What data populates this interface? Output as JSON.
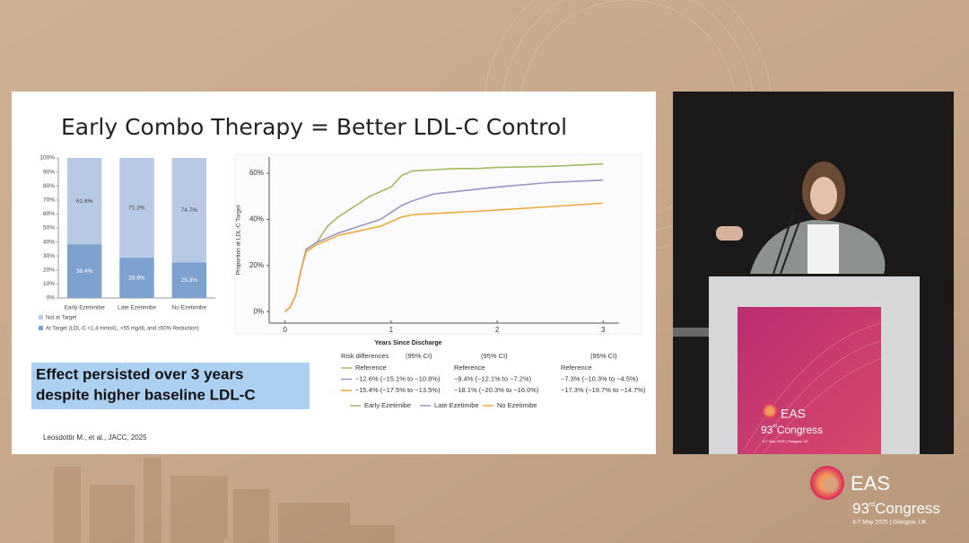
{
  "slide": {
    "title": "Early Combo Therapy = Better LDL-C Control",
    "callout": [
      "Effect persisted over 3 years",
      "despite higher baseline LDL-C"
    ],
    "citation": "Leosdottir M., et al., JACC, 2025"
  },
  "chart_data": [
    {
      "type": "stacked-bar",
      "categories": [
        "Early Ezetimibe",
        "Late Ezetimibe",
        "No Ezetimibe"
      ],
      "series": [
        {
          "name": "Not at Target",
          "color": "#b7c9e4",
          "values": [
            61.6,
            71.2,
            74.7
          ],
          "value_labels": [
            "61.6%",
            "71.2%",
            "74.7%"
          ]
        },
        {
          "name": "At Target (LDL-C <1.4 mmol/L, <55 mg/dL and ≥50% Reduction)",
          "color": "#7ea2d0",
          "values": [
            38.4,
            28.8,
            25.3
          ],
          "value_labels": [
            "38.4%",
            "28.8%",
            "25.3%"
          ]
        }
      ],
      "ylim": [
        0,
        100
      ],
      "yticks": [
        {
          "value": 0,
          "label": "0%"
        },
        {
          "value": 10,
          "label": "10%"
        },
        {
          "value": 20,
          "label": "20%"
        },
        {
          "value": 30,
          "label": "30%"
        },
        {
          "value": 40,
          "label": "40%"
        },
        {
          "value": 50,
          "label": "50%"
        },
        {
          "value": 60,
          "label": "60%"
        },
        {
          "value": 70,
          "label": "70%"
        },
        {
          "value": 80,
          "label": "80%"
        },
        {
          "value": 90,
          "label": "90%"
        },
        {
          "value": 100,
          "label": "100%"
        }
      ]
    },
    {
      "type": "line",
      "ylabel": "Proportion at LDL-C Target",
      "xlabel": "Years Since Discharge",
      "x": [
        0,
        0.05,
        0.1,
        0.15,
        0.2,
        0.3,
        0.4,
        0.5,
        0.6,
        0.7,
        0.8,
        0.9,
        1.0,
        1.1,
        1.2,
        1.4,
        1.6,
        1.8,
        2.0,
        2.5,
        3.0
      ],
      "series": [
        {
          "name": "Early Ezetimibe",
          "color": "#a3b961",
          "values": [
            0,
            2,
            7,
            18,
            27,
            30,
            37,
            41,
            44,
            47,
            50,
            52,
            54,
            59,
            61,
            61.5,
            62,
            62,
            62.5,
            63,
            64
          ]
        },
        {
          "name": "Late Ezetimibe",
          "color": "#9d93c4",
          "values": [
            0,
            2,
            7,
            18,
            27,
            30,
            32,
            34,
            35.5,
            37,
            38.5,
            40,
            43,
            46,
            48,
            51,
            52,
            53,
            54,
            56,
            57
          ]
        },
        {
          "name": "No Ezetimibe",
          "color": "#eea83c",
          "values": [
            0,
            2,
            7,
            18,
            26,
            29,
            31,
            33,
            34,
            35,
            36,
            37,
            39,
            41,
            42,
            42.5,
            43,
            43.5,
            44,
            45.5,
            47
          ]
        }
      ],
      "xlim": [
        -0.15,
        3.15
      ],
      "ylim": [
        -5,
        67
      ],
      "xticks": [
        0,
        1,
        2,
        3
      ],
      "yticks": [
        {
          "value": 0,
          "label": "0%"
        },
        {
          "value": 20,
          "label": "20%"
        },
        {
          "value": 40,
          "label": "40%"
        },
        {
          "value": 60,
          "label": "60%"
        }
      ]
    }
  ],
  "risk_table": {
    "header": [
      "Risk differences",
      "(95% CI)",
      "(95% CI)",
      "(95% CI)"
    ],
    "rows": [
      [
        "Reference",
        "Reference",
        "Reference"
      ],
      [
        "−12.6% (−15.1% to −10.8%)",
        "−9.4% (−12.1% to −7.2%)",
        "−7.3% (−10.3% to −4.5%)"
      ],
      [
        "−15.4% (−17.5% to −13.5%)",
        "−18.1% (−20.3% to −16.0%)",
        "−17.3% (−19.7% to −14.7%)"
      ]
    ]
  },
  "logo": {
    "name": "EAS",
    "edition": "93",
    "ordinal": "rd",
    "event": "Congress",
    "dates": "4-7 May 2025 | Glasgow, UK"
  }
}
